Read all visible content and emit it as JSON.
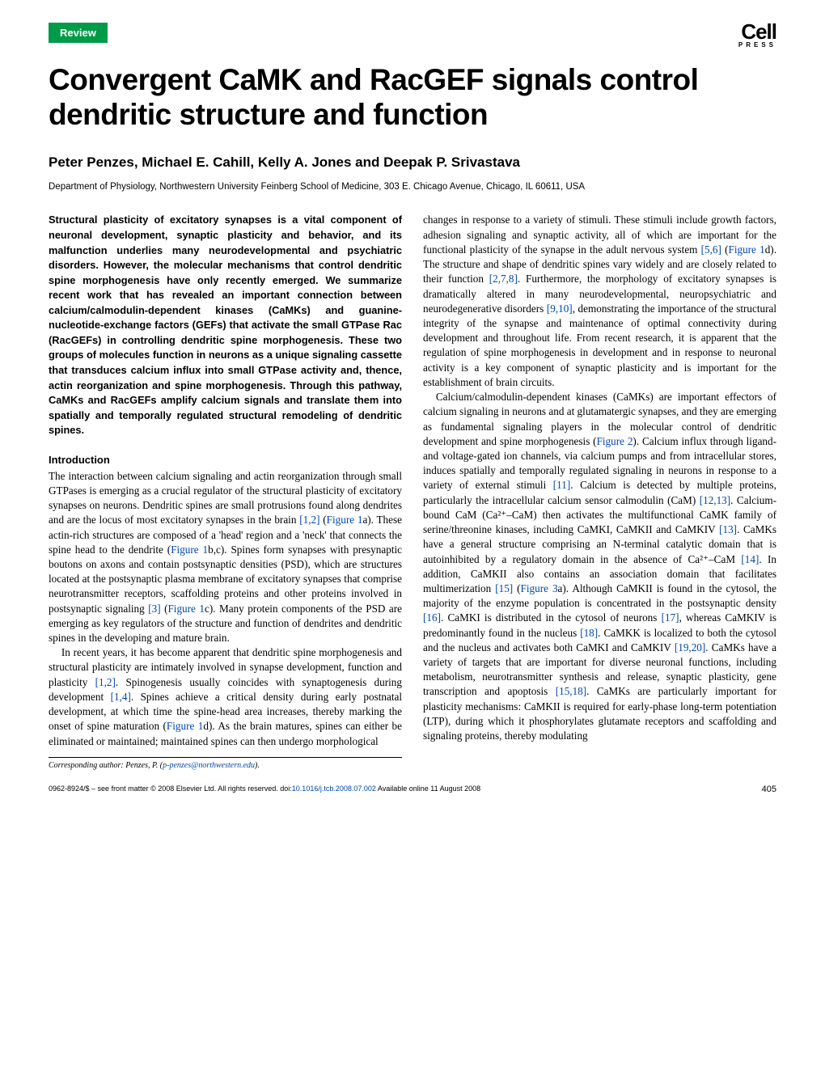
{
  "badge": "Review",
  "logo": {
    "main": "Cell",
    "sub": "PRESS"
  },
  "title": "Convergent CaMK and RacGEF signals control dendritic structure and function",
  "authors": "Peter Penzes, Michael E. Cahill, Kelly A. Jones and Deepak P. Srivastava",
  "affiliation": "Department of Physiology, Northwestern University Feinberg School of Medicine, 303 E. Chicago Avenue, Chicago, IL 60611, USA",
  "abstract": "Structural plasticity of excitatory synapses is a vital component of neuronal development, synaptic plasticity and behavior, and its malfunction underlies many neurodevelopmental and psychiatric disorders. However, the molecular mechanisms that control dendritic spine morphogenesis have only recently emerged. We summarize recent work that has revealed an important connection between calcium/calmodulin-dependent kinases (CaMKs) and guanine-nucleotide-exchange factors (GEFs) that activate the small GTPase Rac (RacGEFs) in controlling dendritic spine morphogenesis. These two groups of molecules function in neurons as a unique signaling cassette that transduces calcium influx into small GTPase activity and, thence, actin reorganization and spine morphogenesis. Through this pathway, CaMKs and RacGEFs amplify calcium signals and translate them into spatially and temporally regulated structural remodeling of dendritic spines.",
  "section_heading": "Introduction",
  "col1": {
    "p1a": "The interaction between calcium signaling and actin reorganization through small GTPases is emerging as a crucial regulator of the structural plasticity of excitatory synapses on neurons. Dendritic spines are small protrusions found along dendrites and are the locus of most excitatory synapses in the brain ",
    "r1": "[1,2]",
    "p1b": " (",
    "r2": "Figure 1",
    "p1c": "a). These actin-rich structures are composed of a 'head' region and a 'neck' that connects the spine head to the dendrite (",
    "r3": "Figure 1",
    "p1d": "b,c). Spines form synapses with presynaptic boutons on axons and contain postsynaptic densities (PSD), which are structures located at the postsynaptic plasma membrane of excitatory synapses that comprise neurotransmitter receptors, scaffolding proteins and other proteins involved in postsynaptic signaling ",
    "r4": "[3]",
    "p1e": " (",
    "r5": "Figure 1",
    "p1f": "c). Many protein components of the PSD are emerging as key regulators of the structure and function of dendrites and dendritic spines in the developing and mature brain.",
    "p2a": "In recent years, it has become apparent that dendritic spine morphogenesis and structural plasticity are intimately involved in synapse development, function and plasticity ",
    "r6": "[1,2]",
    "p2b": ". Spinogenesis usually coincides with synaptogenesis during development ",
    "r7": "[1,4]",
    "p2c": ". Spines achieve a critical density during early postnatal development, at which time the spine-head area increases, thereby marking the onset of spine maturation (",
    "r8": "Figure 1",
    "p2d": "d). As the brain matures, spines can either be eliminated or maintained; maintained spines can then undergo morphological"
  },
  "col2": {
    "p1a": "changes in response to a variety of stimuli. These stimuli include growth factors, adhesion signaling and synaptic activity, all of which are important for the functional plasticity of the synapse in the adult nervous system ",
    "r1": "[5,6]",
    "p1b": " (",
    "r2": "Figure 1",
    "p1c": "d). The structure and shape of dendritic spines vary widely and are closely related to their function ",
    "r3": "[2,7,8]",
    "p1d": ". Furthermore, the morphology of excitatory synapses is dramatically altered in many neurodevelopmental, neuropsychiatric and neurodegenerative disorders ",
    "r4": "[9,10]",
    "p1e": ", demonstrating the importance of the structural integrity of the synapse and maintenance of optimal connectivity during development and throughout life. From recent research, it is apparent that the regulation of spine morphogenesis in development and in response to neuronal activity is a key component of synaptic plasticity and is important for the establishment of brain circuits.",
    "p2a": "Calcium/calmodulin-dependent kinases (CaMKs) are important effectors of calcium signaling in neurons and at glutamatergic synapses, and they are emerging as fundamental signaling players in the molecular control of dendritic development and spine morphogenesis (",
    "r5": "Figure 2",
    "p2b": "). Calcium influx through ligand- and voltage-gated ion channels, via calcium pumps and from intracellular stores, induces spatially and temporally regulated signaling in neurons in response to a variety of external stimuli ",
    "r6": "[11]",
    "p2c": ". Calcium is detected by multiple proteins, particularly the intracellular calcium sensor calmodulin (CaM) ",
    "r7": "[12,13]",
    "p2d": ". Calcium-bound CaM (Ca²⁺–CaM) then activates the multifunctional CaMK family of serine/threonine kinases, including CaMKI, CaMKII and CaMKIV ",
    "r8": "[13]",
    "p2e": ". CaMKs have a general structure comprising an N-terminal catalytic domain that is autoinhibited by a regulatory domain in the absence of Ca²⁺–CaM ",
    "r9": "[14]",
    "p2f": ". In addition, CaMKII also contains an association domain that facilitates multimerization ",
    "r10": "[15]",
    "p2g": " (",
    "r11": "Figure 3",
    "p2h": "a). Although CaMKII is found in the cytosol, the majority of the enzyme population is concentrated in the postsynaptic density ",
    "r12": "[16]",
    "p2i": ". CaMKI is distributed in the cytosol of neurons ",
    "r13": "[17]",
    "p2j": ", whereas CaMKIV is predominantly found in the nucleus ",
    "r14": "[18]",
    "p2k": ". CaMKK is localized to both the cytosol and the nucleus and activates both CaMKI and CaMKIV ",
    "r15": "[19,20]",
    "p2l": ". CaMKs have a variety of targets that are important for diverse neuronal functions, including metabolism, neurotransmitter synthesis and release, synaptic plasticity, gene transcription and apoptosis ",
    "r16": "[15,18]",
    "p2m": ". CaMKs are particularly important for plasticity mechanisms: CaMKII is required for early-phase long-term potentiation (LTP), during which it phosphorylates glutamate receptors and scaffolding and signaling proteins, thereby modulating"
  },
  "corresponding": {
    "label": "Corresponding author:",
    "name": " Penzes, P. (",
    "email": "p-penzes@northwestern.edu",
    "close": ")."
  },
  "footer": {
    "copyright": "0962-8924/$ – see front matter © 2008 Elsevier Ltd. All rights reserved. doi:",
    "doi": "10.1016/j.tcb.2008.07.002",
    "online": " Available online 11 August 2008",
    "page": "405"
  }
}
